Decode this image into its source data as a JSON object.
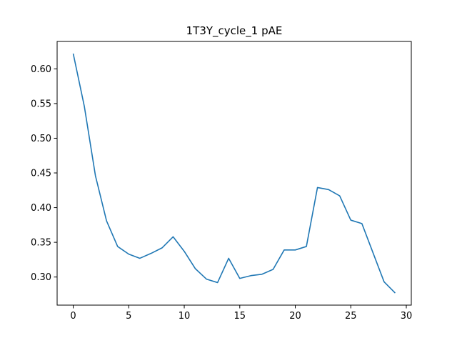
{
  "chart_data": {
    "type": "line",
    "title": "1T3Y_cycle_1 pAE",
    "xlabel": "",
    "ylabel": "",
    "xlim": [
      -1.45,
      30.45
    ],
    "ylim": [
      0.2595,
      0.6395
    ],
    "grid": false,
    "x_ticks": [
      0,
      5,
      10,
      15,
      20,
      25,
      30
    ],
    "x_tick_labels": [
      "0",
      "5",
      "10",
      "15",
      "20",
      "25",
      "30"
    ],
    "y_ticks": [
      0.3,
      0.35,
      0.4,
      0.45,
      0.5,
      0.55,
      0.6
    ],
    "y_tick_labels": [
      "0.30",
      "0.35",
      "0.40",
      "0.45",
      "0.50",
      "0.55",
      "0.60"
    ],
    "series": [
      {
        "color": "#1f77b4",
        "x": [
          0,
          1,
          2,
          3,
          4,
          5,
          6,
          7,
          8,
          9,
          10,
          11,
          12,
          13,
          14,
          15,
          16,
          17,
          18,
          19,
          20,
          21,
          22,
          23,
          24,
          25,
          26,
          27,
          28,
          29
        ],
        "values": [
          0.622,
          0.546,
          0.446,
          0.381,
          0.344,
          0.333,
          0.327,
          0.334,
          0.342,
          0.358,
          0.337,
          0.312,
          0.297,
          0.292,
          0.327,
          0.298,
          0.302,
          0.304,
          0.311,
          0.339,
          0.339,
          0.344,
          0.429,
          0.426,
          0.417,
          0.382,
          0.377,
          0.335,
          0.293,
          0.277
        ]
      }
    ]
  }
}
